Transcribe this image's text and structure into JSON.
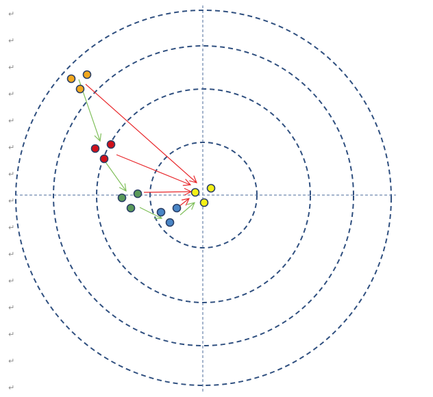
{
  "paragraph_mark": "↵",
  "colors": {
    "ring": "#2f4f7f",
    "axis": "#4a6a9a",
    "arrow_red": "#e8262a",
    "arrow_green": "#7fbf5a",
    "orange": "#f2a81d",
    "red": "#d0101a",
    "green": "#5a9a5a",
    "blue": "#4a86c6",
    "yellow": "#f4f016",
    "outline": "#2b3f66"
  }
}
